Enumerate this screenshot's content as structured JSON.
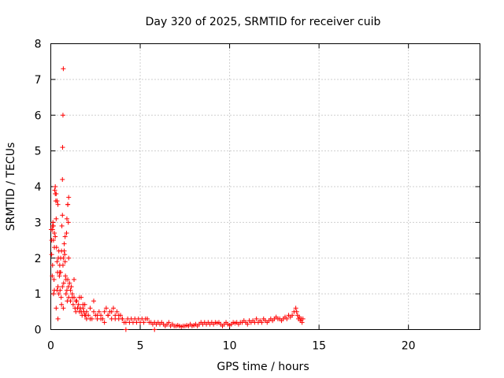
{
  "chart_data": {
    "type": "scatter",
    "title": "Day 320 of 2025, SRMTID for receiver cuib",
    "xlabel": "GPS time / hours",
    "ylabel": "SRMTID / TECUs",
    "xlim": [
      0,
      24
    ],
    "ylim": [
      0,
      8
    ],
    "xticks": [
      0,
      5,
      10,
      15,
      20
    ],
    "xtick_labels": [
      "0",
      "5",
      "10",
      "15",
      "20"
    ],
    "yticks": [
      0,
      1,
      2,
      3,
      4,
      5,
      6,
      7,
      8
    ],
    "ytick_labels": [
      "0",
      "1",
      "2",
      "3",
      "4",
      "5",
      "6",
      "7",
      "8"
    ],
    "grid": true,
    "marker": "+",
    "color": "#ff0000",
    "series": [
      {
        "x": [
          0.02,
          0.05,
          0.08,
          0.1,
          0.12,
          0.15,
          0.18,
          0.2,
          0.22,
          0.25,
          0.28,
          0.3,
          0.32,
          0.35,
          0.38,
          0.4,
          0.42,
          0.45,
          0.48,
          0.5,
          0.52,
          0.55,
          0.58,
          0.6,
          0.62,
          0.65,
          0.68,
          0.7,
          0.72,
          0.75,
          0.78,
          0.8,
          0.82,
          0.85,
          0.88,
          0.9,
          0.92,
          0.95,
          0.98,
          1.0,
          1.05,
          1.1,
          1.15,
          1.2,
          1.25,
          1.3,
          1.35,
          1.4,
          1.45,
          1.5,
          1.55,
          1.6,
          1.65,
          1.7,
          1.75,
          1.8,
          1.85,
          1.9,
          1.95,
          2.0,
          2.1,
          2.2,
          2.3,
          2.4,
          2.5,
          2.6,
          2.7,
          2.8,
          2.9,
          3.0,
          3.1,
          3.2,
          3.3,
          3.4,
          3.5,
          3.6,
          3.7,
          3.8,
          3.9,
          4.0,
          4.1,
          4.2,
          4.3,
          4.4,
          4.5,
          4.6,
          4.7,
          4.8,
          4.9,
          5.0,
          5.1,
          5.2,
          5.3,
          5.4,
          5.5,
          5.6,
          5.7,
          5.8,
          5.9,
          6.0,
          6.1,
          6.2,
          6.3,
          6.4,
          6.5,
          6.6,
          6.7,
          6.8,
          6.9,
          7.0,
          7.1,
          7.2,
          7.3,
          7.4,
          7.5,
          7.6,
          7.7,
          7.8,
          7.9,
          8.0,
          8.1,
          8.2,
          8.3,
          8.4,
          8.5,
          8.6,
          8.7,
          8.8,
          8.9,
          9.0,
          9.1,
          9.2,
          9.3,
          9.4,
          9.5,
          9.6,
          9.7,
          9.8,
          9.9,
          10.0,
          10.1,
          10.2,
          10.3,
          10.4,
          10.5,
          10.6,
          10.7,
          10.8,
          10.9,
          11.0,
          11.1,
          11.2,
          11.3,
          11.4,
          11.5,
          11.6,
          11.7,
          11.8,
          11.9,
          12.0,
          12.1,
          12.2,
          12.3,
          12.4,
          12.5,
          12.6,
          12.7,
          12.8,
          12.9,
          13.0,
          13.1,
          13.2,
          13.3,
          13.4,
          13.5,
          13.6,
          13.7,
          13.75,
          13.8,
          13.85,
          13.9,
          13.95,
          14.0,
          14.05,
          14.1,
          0.05,
          0.1,
          0.15,
          0.2,
          0.25,
          0.3,
          0.35,
          0.4,
          0.45,
          0.5,
          0.55,
          0.6,
          0.65,
          0.7,
          0.75,
          0.8,
          0.85,
          0.9,
          0.95,
          1.0,
          1.1,
          1.2,
          1.3,
          1.4,
          1.5,
          1.6,
          1.7,
          1.8,
          1.9,
          2.0,
          2.2,
          2.4,
          2.6,
          2.8,
          3.0,
          3.2,
          3.4,
          3.6,
          3.8,
          4.0,
          0.7,
          0.68,
          0.66,
          0.65,
          0.35,
          0.3,
          0.4,
          0.95,
          0.98,
          1.0,
          0.25,
          0.2,
          0.15,
          0.1,
          4.2,
          5.8
        ],
        "y": [
          2.8,
          2.1,
          1.5,
          1.8,
          3.0,
          2.5,
          1.4,
          1.1,
          3.9,
          4.0,
          3.6,
          3.1,
          2.3,
          1.9,
          1.6,
          1.2,
          2.0,
          2.2,
          1.5,
          1.8,
          1.1,
          1.6,
          0.9,
          0.7,
          2.9,
          3.2,
          1.8,
          2.0,
          1.3,
          2.4,
          2.1,
          2.6,
          1.5,
          1.0,
          2.7,
          1.1,
          0.8,
          1.4,
          1.2,
          0.9,
          1.3,
          0.8,
          1.2,
          1.0,
          0.7,
          0.9,
          0.6,
          0.5,
          0.8,
          0.6,
          0.7,
          0.5,
          0.6,
          0.9,
          0.4,
          0.6,
          0.5,
          0.7,
          0.4,
          0.5,
          0.4,
          0.6,
          0.3,
          0.5,
          0.4,
          0.3,
          0.5,
          0.4,
          0.3,
          0.5,
          0.6,
          0.4,
          0.5,
          0.3,
          0.6,
          0.4,
          0.5,
          0.3,
          0.4,
          0.3,
          0.2,
          0.2,
          0.3,
          0.2,
          0.3,
          0.2,
          0.3,
          0.2,
          0.3,
          0.2,
          0.3,
          0.2,
          0.3,
          0.3,
          0.2,
          0.2,
          0.15,
          0.2,
          0.15,
          0.2,
          0.15,
          0.2,
          0.15,
          0.1,
          0.15,
          0.2,
          0.1,
          0.15,
          0.1,
          0.1,
          0.12,
          0.1,
          0.08,
          0.1,
          0.1,
          0.12,
          0.1,
          0.15,
          0.1,
          0.12,
          0.15,
          0.1,
          0.15,
          0.2,
          0.15,
          0.2,
          0.15,
          0.2,
          0.15,
          0.2,
          0.15,
          0.2,
          0.18,
          0.2,
          0.15,
          0.1,
          0.15,
          0.2,
          0.15,
          0.12,
          0.15,
          0.2,
          0.18,
          0.2,
          0.15,
          0.2,
          0.2,
          0.25,
          0.2,
          0.15,
          0.25,
          0.2,
          0.25,
          0.2,
          0.3,
          0.2,
          0.25,
          0.2,
          0.3,
          0.25,
          0.2,
          0.25,
          0.3,
          0.25,
          0.3,
          0.35,
          0.3,
          0.3,
          0.25,
          0.3,
          0.35,
          0.3,
          0.4,
          0.35,
          0.4,
          0.5,
          0.6,
          0.5,
          0.4,
          0.3,
          0.35,
          0.25,
          0.3,
          0.2,
          0.3,
          2.5,
          2.9,
          1.0,
          2.7,
          3.8,
          0.6,
          1.1,
          0.3,
          1.0,
          1.6,
          2.0,
          2.2,
          1.2,
          0.6,
          2.2,
          1.9,
          1.4,
          3.1,
          3.5,
          3.7,
          1.1,
          0.9,
          1.4,
          0.8,
          0.6,
          0.9,
          0.5,
          0.7,
          0.4,
          0.3,
          0.3,
          0.8,
          0.4,
          0.3,
          0.2,
          0.4,
          0.5,
          0.3,
          0.4,
          0.3,
          7.3,
          6.0,
          5.1,
          4.2,
          3.6,
          3.8,
          3.5,
          3.5,
          3.0,
          2.0,
          2.6,
          2.3,
          2.9,
          2.8,
          0.0,
          0.0
        ]
      }
    ]
  }
}
